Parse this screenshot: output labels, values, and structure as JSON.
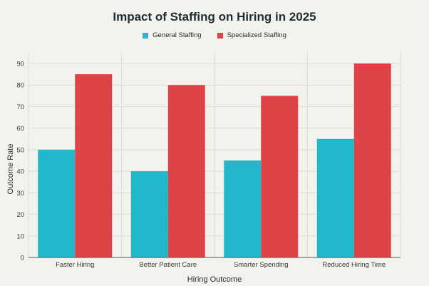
{
  "chart_data": {
    "type": "bar",
    "title": "Impact of Staffing on Hiring in 2025",
    "xlabel": "Hiring Outcome",
    "ylabel": "Outcome Rate",
    "categories": [
      "Faster Hiring",
      "Better Patient Care",
      "Smarter Spending",
      "Reduced Hiring Time"
    ],
    "series": [
      {
        "name": "General Staffing",
        "color": "#21b8cb",
        "values": [
          50,
          40,
          45,
          55
        ]
      },
      {
        "name": "Specialized Staffing",
        "color": "#dc4448",
        "values": [
          85,
          80,
          75,
          90
        ]
      }
    ],
    "ylim": [
      0,
      90
    ],
    "yticks": [
      0,
      10,
      20,
      30,
      40,
      50,
      60,
      70,
      80,
      90
    ],
    "grid": true,
    "legend_position": "top-center"
  }
}
